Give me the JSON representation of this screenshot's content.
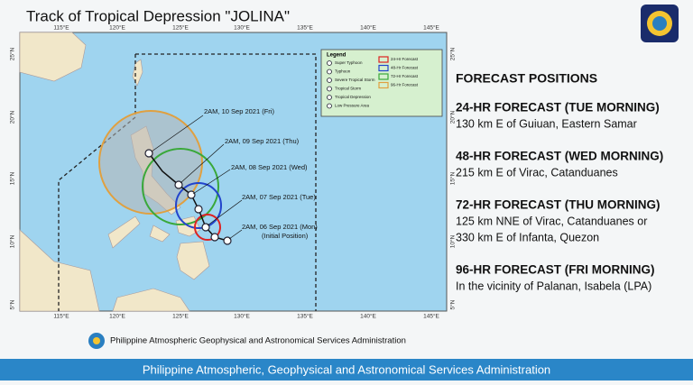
{
  "header": {
    "title": "Track of Tropical Depression \"JOLINA\""
  },
  "map": {
    "longitudes": [
      "115°E",
      "120°E",
      "125°E",
      "130°E",
      "135°E",
      "140°E",
      "145°E"
    ],
    "latitudes": [
      "25°N",
      "20°N",
      "15°N",
      "10°N",
      "5°N"
    ],
    "legend": {
      "title": "Legend",
      "storm_types": [
        "Super Typhoon",
        "Typhoon",
        "Severe Tropical Storm",
        "Tropical Storm",
        "Tropical Depression",
        "Low Pressure Area"
      ],
      "forecasts": [
        "24-Hr Forecast",
        "48-Hr Forecast",
        "72-Hr Forecast",
        "96-Hr Forecast"
      ]
    },
    "track_labels": [
      "2AM, 10 Sep 2021 (Fri)",
      "2AM, 09 Sep 2021 (Thu)",
      "2AM, 08 Sep 2021 (Wed)",
      "2AM, 07 Sep 2021 (Tue)",
      "2AM, 06 Sep 2021 (Mon)"
    ],
    "initial_position": "(Initial Position)",
    "agency": "Philippine Atmospheric Geophysical and Astronomical Services Administration"
  },
  "forecast": {
    "title": "FORECAST POSITIONS",
    "items": [
      {
        "heading": "24-HR FORECAST (TUE MORNING)",
        "lines": [
          "130 km E of Guiuan, Eastern Samar"
        ]
      },
      {
        "heading": "48-HR FORECAST (WED MORNING)",
        "lines": [
          "215 km E of Virac, Catanduanes"
        ]
      },
      {
        "heading": "72-HR FORECAST (THU MORNING)",
        "lines": [
          "125 km NNE of Virac, Catanduanes or",
          "330 km E of Infanta, Quezon"
        ]
      },
      {
        "heading": "96-HR FORECAST (FRI MORNING)",
        "lines": [
          "In the vicinity of Palanan, Isabela (LPA)"
        ]
      }
    ]
  },
  "footer": {
    "text": "Philippine Atmospheric, Geophysical and Astronomical Services Administration"
  }
}
